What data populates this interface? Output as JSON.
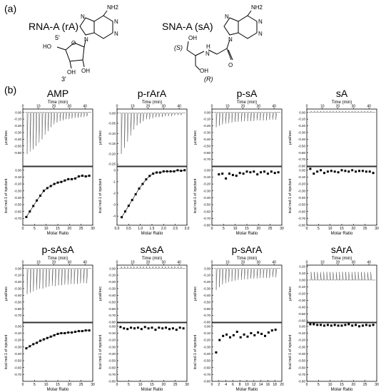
{
  "panel_a_label": "(a)",
  "panel_b_label": "(b)",
  "structures": {
    "rna": {
      "name": "RNA-A (rA)",
      "nh2": "NH2",
      "n": "N",
      "o": "O",
      "ho": "HO",
      "oh": "OH",
      "p5": "5'",
      "p3": "3'"
    },
    "sna": {
      "name": "SNA-A (sA)",
      "nh2": "NH2",
      "n": "N",
      "o": "O",
      "oh": "OH",
      "nh": "H",
      "s": "(S)",
      "r": "(R)"
    }
  },
  "chart_data": [
    {
      "type": "scatter",
      "title": "AMP",
      "top_xlabel": "Time (min)",
      "top_ylabel": "µcal/sec",
      "top_xlim": [
        0,
        45
      ],
      "top_xticks": [
        0,
        10,
        20,
        30,
        40
      ],
      "top_ylim": [
        -0.8,
        0.05
      ],
      "top_yticks": [
        "0.00",
        "-0.10",
        "-0.20",
        "-0.30",
        "-0.40",
        "-0.50",
        "-0.60"
      ],
      "top_yvals": [
        0.0,
        -0.1,
        -0.2,
        -0.3,
        -0.4,
        -0.5,
        -0.6
      ],
      "spikes": [
        -0.62,
        -0.58,
        -0.55,
        -0.5,
        -0.45,
        -0.4,
        -0.33,
        -0.28,
        -0.22,
        -0.18,
        -0.15,
        -0.13,
        -0.12,
        -0.1,
        -0.1,
        -0.09,
        -0.08,
        -0.08,
        -0.07,
        -0.07,
        -0.06
      ],
      "bottom_xlabel": "Molar Ratio",
      "bottom_ylabel": "kcal mol-1 of injectant",
      "bottom_xlim": [
        0,
        30
      ],
      "bottom_xticks": [
        0,
        5,
        10,
        15,
        20,
        25,
        30
      ],
      "bottom_ylim": [
        -0.8,
        0.05
      ],
      "bottom_yticks": [
        "0.00",
        "-0.10",
        "-0.20",
        "-0.30",
        "-0.40",
        "-0.50",
        "-0.60",
        "-0.70"
      ],
      "bottom_yvals": [
        0.0,
        -0.1,
        -0.2,
        -0.3,
        -0.4,
        -0.5,
        -0.6,
        -0.7
      ],
      "points_x": [
        1.5,
        3,
        4.5,
        6,
        7.5,
        9,
        10.5,
        12,
        13.5,
        15,
        16.5,
        18,
        19.5,
        21,
        22.5,
        24,
        25.5,
        27,
        28.5
      ],
      "points_y": [
        -0.68,
        -0.6,
        -0.52,
        -0.44,
        -0.37,
        -0.3,
        -0.26,
        -0.23,
        -0.2,
        -0.18,
        -0.17,
        -0.15,
        -0.13,
        -0.13,
        -0.12,
        -0.09,
        -0.08,
        -0.09,
        -0.08
      ]
    },
    {
      "type": "scatter",
      "title": "p-rArA",
      "top_xlabel": "Time (min)",
      "top_ylabel": "µcal/sec",
      "top_xlim": [
        0,
        45
      ],
      "top_xticks": [
        0,
        10,
        20,
        30,
        40
      ],
      "top_ylim": [
        -0.26,
        0.02
      ],
      "top_yticks": [
        "0.00",
        "-0.05",
        "-0.10",
        "-0.15",
        "-0.20",
        "-0.25"
      ],
      "top_yvals": [
        0.0,
        -0.05,
        -0.1,
        -0.15,
        -0.2,
        -0.25
      ],
      "spikes": [
        -0.2,
        -0.17,
        -0.14,
        -0.11,
        -0.08,
        -0.06,
        -0.05,
        -0.04,
        -0.03,
        -0.03,
        -0.025,
        -0.02,
        -0.02,
        -0.02,
        -0.015,
        -0.015,
        -0.015,
        -0.01,
        -0.01,
        -0.01
      ],
      "bottom_xlabel": "Molar Ratio",
      "bottom_ylabel": "kcal mol-1 of injectant",
      "bottom_xlim": [
        0,
        3
      ],
      "bottom_xticks": [
        0,
        0.5,
        1,
        1.5,
        2,
        2.5,
        3
      ],
      "bottom_xticklabels": [
        "0.0",
        "0.5",
        "1.0",
        "1.5",
        "2.0",
        "2.5",
        "3.0"
      ],
      "bottom_ylim": [
        -4.8,
        0.3
      ],
      "bottom_yticks": [
        "0",
        "-1",
        "-2",
        "-3",
        "-4"
      ],
      "bottom_yvals": [
        0,
        -1,
        -2,
        -3,
        -4
      ],
      "points_x": [
        0.2,
        0.35,
        0.5,
        0.65,
        0.8,
        0.95,
        1.1,
        1.25,
        1.4,
        1.55,
        1.7,
        1.85,
        2.0,
        2.15,
        2.3,
        2.45,
        2.6,
        2.75,
        2.9
      ],
      "points_y": [
        -4.1,
        -3.6,
        -3.1,
        -2.6,
        -2.1,
        -1.6,
        -1.2,
        -0.8,
        -0.5,
        -0.3,
        -0.2,
        -0.2,
        -0.1,
        -0.1,
        -0.1,
        -0.1,
        0.0,
        -0.05,
        0.0
      ]
    },
    {
      "type": "scatter",
      "title": "p-sA",
      "top_xlabel": "Time (min)",
      "top_ylabel": "µcal/sec",
      "top_xlim": [
        0,
        45
      ],
      "top_xticks": [
        0,
        10,
        20,
        30,
        40
      ],
      "top_ylim": [
        -0.8,
        0.05
      ],
      "top_yticks": [
        "0.00",
        "-0.10",
        "-0.20",
        "-0.30",
        "-0.40",
        "-0.50",
        "-0.60",
        "-0.70"
      ],
      "top_yvals": [
        0.0,
        -0.1,
        -0.2,
        -0.3,
        -0.4,
        -0.5,
        -0.6,
        -0.7
      ],
      "spikes": [
        -0.22,
        -0.2,
        -0.18,
        -0.17,
        -0.16,
        -0.15,
        -0.14,
        -0.14,
        -0.14,
        -0.13,
        -0.13,
        -0.13,
        -0.13,
        -0.12,
        -0.12,
        -0.12,
        -0.12,
        -0.11,
        -0.11,
        -0.11
      ],
      "bottom_xlabel": "Molar Ratio",
      "bottom_ylabel": "kcal mol-1 of injectant",
      "bottom_xlim": [
        0,
        30
      ],
      "bottom_xticks": [
        0,
        5,
        10,
        15,
        20,
        25,
        30
      ],
      "bottom_ylim": [
        -0.8,
        0.05
      ],
      "bottom_yticks": [
        "0.00",
        "-0.10",
        "-0.20",
        "-0.30",
        "-0.40",
        "-0.50",
        "-0.60",
        "-0.70",
        "-0.80"
      ],
      "bottom_yvals": [
        0.0,
        -0.1,
        -0.2,
        -0.3,
        -0.4,
        -0.5,
        -0.6,
        -0.7,
        -0.8
      ],
      "points_x": [
        3,
        4.5,
        6,
        7.5,
        9,
        10.5,
        12,
        13.5,
        15,
        16.5,
        18,
        19.5,
        21,
        22.5,
        24,
        25.5,
        27,
        28.5
      ],
      "points_y": [
        -0.06,
        -0.05,
        -0.12,
        -0.05,
        -0.07,
        -0.08,
        -0.04,
        -0.05,
        -0.02,
        -0.03,
        -0.02,
        -0.06,
        -0.03,
        -0.02,
        -0.05,
        -0.02,
        -0.04,
        -0.03
      ]
    },
    {
      "type": "scatter",
      "title": "sA",
      "top_xlabel": "Time (min)",
      "top_ylabel": "µcal/sec",
      "top_xlim": [
        0,
        45
      ],
      "top_xticks": [
        0,
        10,
        20,
        30,
        40
      ],
      "top_ylim": [
        -0.8,
        0.05
      ],
      "top_yticks": [
        "0.00",
        "-0.10",
        "-0.20",
        "-0.30",
        "-0.40",
        "-0.50",
        "-0.60",
        "-0.70",
        "-0.80"
      ],
      "top_yvals": [
        0.0,
        -0.1,
        -0.2,
        -0.3,
        -0.4,
        -0.5,
        -0.6,
        -0.7,
        -0.8
      ],
      "spikes": [
        0.02,
        0.02,
        0.02,
        0.02,
        0.02,
        0.02,
        0.02,
        0.02,
        0.02,
        0.02,
        0.02,
        0.02,
        0.02,
        0.02,
        0.02,
        0.02,
        0.02,
        0.02,
        0.02,
        0.02
      ],
      "bottom_xlabel": "Molar Ratio",
      "bottom_ylabel": "kcal mol-1 of injectant",
      "bottom_xlim": [
        0,
        30
      ],
      "bottom_xticks": [
        0,
        5,
        10,
        15,
        20,
        25,
        30
      ],
      "bottom_ylim": [
        -0.8,
        0.05
      ],
      "bottom_yticks": [
        "0.00",
        "-0.10",
        "-0.20",
        "-0.30",
        "-0.40",
        "-0.50",
        "-0.60",
        "-0.70",
        "-0.80"
      ],
      "bottom_yvals": [
        0.0,
        -0.1,
        -0.2,
        -0.3,
        -0.4,
        -0.5,
        -0.6,
        -0.7,
        -0.8
      ],
      "points_x": [
        1.5,
        3,
        4.5,
        6,
        7.5,
        9,
        10.5,
        12,
        13.5,
        15,
        16.5,
        18,
        19.5,
        21,
        22.5,
        24,
        25.5,
        27,
        28.5
      ],
      "points_y": [
        0.02,
        -0.05,
        -0.02,
        0.0,
        -0.04,
        -0.02,
        -0.01,
        -0.02,
        -0.03,
        0.0,
        -0.01,
        -0.02,
        0.0,
        -0.02,
        -0.01,
        -0.01,
        -0.02,
        -0.02,
        -0.04
      ]
    },
    {
      "type": "scatter",
      "title": "p-sAsA",
      "top_xlabel": "Time (min)",
      "top_ylabel": "µcal/sec",
      "top_xlim": [
        0,
        45
      ],
      "top_xticks": [
        0,
        10,
        20,
        30,
        40
      ],
      "top_ylim": [
        -0.8,
        0.05
      ],
      "top_yticks": [
        "0.00",
        "-0.10",
        "-0.20",
        "-0.30",
        "-0.40",
        "-0.50",
        "-0.60",
        "-0.70"
      ],
      "top_yvals": [
        0.0,
        -0.1,
        -0.2,
        -0.3,
        -0.4,
        -0.5,
        -0.6,
        -0.7
      ],
      "spikes": [
        -0.38,
        -0.36,
        -0.34,
        -0.32,
        -0.3,
        -0.3,
        -0.28,
        -0.27,
        -0.26,
        -0.26,
        -0.25,
        -0.25,
        -0.24,
        -0.24,
        -0.23,
        -0.23,
        -0.23,
        -0.22,
        -0.22,
        -0.22
      ],
      "bottom_xlabel": "Molar Ratio",
      "bottom_ylabel": "kcal mol-1 of injectant",
      "bottom_xlim": [
        0,
        30
      ],
      "bottom_xticks": [
        0,
        5,
        10,
        15,
        20,
        25,
        30
      ],
      "bottom_ylim": [
        -0.8,
        0.05
      ],
      "bottom_yticks": [
        "0.00",
        "-0.10",
        "-0.20",
        "-0.30",
        "-0.40",
        "-0.50",
        "-0.60",
        "-0.70"
      ],
      "bottom_yvals": [
        0.0,
        -0.1,
        -0.2,
        -0.3,
        -0.4,
        -0.5,
        -0.6,
        -0.7
      ],
      "points_x": [
        1.5,
        3,
        4.5,
        6,
        7.5,
        9,
        10.5,
        12,
        13.5,
        15,
        16.5,
        18,
        19.5,
        21,
        22.5,
        24,
        25.5,
        27,
        28.5
      ],
      "points_y": [
        -0.32,
        -0.29,
        -0.26,
        -0.24,
        -0.21,
        -0.19,
        -0.17,
        -0.15,
        -0.13,
        -0.11,
        -0.1,
        -0.1,
        -0.09,
        -0.09,
        -0.08,
        -0.07,
        -0.07,
        -0.06,
        -0.06
      ]
    },
    {
      "type": "scatter",
      "title": "sAsA",
      "top_xlabel": "Time (min)",
      "top_ylabel": "µcal/sec",
      "top_xlim": [
        0,
        45
      ],
      "top_xticks": [
        0,
        10,
        20,
        30,
        40
      ],
      "top_ylim": [
        -0.8,
        0.05
      ],
      "top_yticks": [
        "0.00",
        "-0.10",
        "-0.20",
        "-0.30",
        "-0.40",
        "-0.50",
        "-0.60",
        "-0.70",
        "-0.80"
      ],
      "top_yvals": [
        0.0,
        -0.1,
        -0.2,
        -0.3,
        -0.4,
        -0.5,
        -0.6,
        -0.7,
        -0.8
      ],
      "spikes": [
        0.03,
        0.03,
        0.03,
        0.03,
        0.03,
        0.03,
        0.03,
        0.03,
        0.03,
        0.03,
        0.03,
        0.03,
        0.03,
        0.03,
        0.03,
        0.03,
        0.03,
        0.03,
        0.03,
        0.03
      ],
      "bottom_xlabel": "Molar Ratio",
      "bottom_ylabel": "kcal mol-1 of injectant",
      "bottom_xlim": [
        0,
        30
      ],
      "bottom_xticks": [
        0,
        5,
        10,
        15,
        20,
        25,
        30
      ],
      "bottom_ylim": [
        -0.8,
        0.05
      ],
      "bottom_yticks": [
        "0.00",
        "-0.10",
        "-0.20",
        "-0.30",
        "-0.40",
        "-0.50",
        "-0.60",
        "-0.70",
        "-0.80"
      ],
      "bottom_yvals": [
        0.0,
        -0.1,
        -0.2,
        -0.3,
        -0.4,
        -0.5,
        -0.6,
        -0.7,
        -0.8
      ],
      "points_x": [
        1.5,
        3,
        4.5,
        6,
        7.5,
        9,
        10.5,
        12,
        13.5,
        15,
        16.5,
        18,
        19.5,
        21,
        22.5,
        24,
        25.5,
        27,
        28.5
      ],
      "points_y": [
        -0.01,
        -0.03,
        -0.04,
        -0.02,
        -0.03,
        -0.02,
        -0.04,
        -0.01,
        -0.03,
        -0.02,
        -0.05,
        -0.02,
        -0.03,
        -0.02,
        -0.04,
        -0.03,
        -0.05,
        -0.02,
        -0.03
      ]
    },
    {
      "type": "scatter",
      "title": "p-sArA",
      "top_xlabel": "Time (min)",
      "top_ylabel": "µcal/sec",
      "top_xlim": [
        0,
        45
      ],
      "top_xticks": [
        0,
        10,
        20,
        30,
        40
      ],
      "top_ylim": [
        -0.8,
        0.05
      ],
      "top_yticks": [
        "0.00",
        "-0.10",
        "-0.20",
        "-0.30",
        "-0.40",
        "-0.50",
        "-0.60",
        "-0.70",
        "-0.80"
      ],
      "top_yvals": [
        0.0,
        -0.1,
        -0.2,
        -0.3,
        -0.4,
        -0.5,
        -0.6,
        -0.7,
        -0.8
      ],
      "spikes": [
        -0.32,
        -0.28,
        -0.24,
        -0.22,
        -0.2,
        -0.19,
        -0.18,
        -0.17,
        -0.17,
        -0.16,
        -0.16,
        -0.15,
        -0.15,
        -0.15,
        -0.14,
        -0.14,
        -0.14,
        -0.14,
        -0.13,
        -0.13
      ],
      "bottom_xlabel": "Molar Ratio",
      "bottom_ylabel": "kcal mol-1 of injectant",
      "bottom_xlim": [
        0,
        20
      ],
      "bottom_xticks": [
        0,
        2,
        4,
        6,
        8,
        10,
        12,
        14,
        16,
        18,
        20
      ],
      "bottom_ylim": [
        -0.8,
        0.05
      ],
      "bottom_yticks": [
        "0.00",
        "-0.10",
        "-0.20",
        "-0.30",
        "-0.40",
        "-0.50",
        "-0.60",
        "-0.70",
        "-0.80"
      ],
      "bottom_yvals": [
        0.0,
        -0.1,
        -0.2,
        -0.3,
        -0.4,
        -0.5,
        -0.6,
        -0.7,
        -0.8
      ],
      "points_x": [
        1.2,
        2.2,
        3.2,
        4.2,
        5.2,
        6.2,
        7.2,
        8.2,
        9.2,
        10.2,
        11.2,
        12.2,
        13.2,
        14.2,
        15.2,
        16.2,
        17.2,
        18.2
      ],
      "points_y": [
        -0.38,
        -0.2,
        -0.14,
        -0.12,
        -0.16,
        -0.13,
        -0.08,
        -0.16,
        -0.12,
        -0.15,
        -0.1,
        -0.13,
        -0.09,
        -0.11,
        -0.14,
        -0.09,
        -0.06,
        -0.05
      ]
    },
    {
      "type": "scatter",
      "title": "sArA",
      "top_xlabel": "Time (min)",
      "top_ylabel": "µcal/sec",
      "top_xlim": [
        0,
        45
      ],
      "top_xticks": [
        0,
        10,
        20,
        30,
        40
      ],
      "top_ylim": [
        -0.62,
        0.22
      ],
      "top_yticks": [
        "0.20",
        "0.10",
        "0.00",
        "-0.10",
        "-0.20",
        "-0.30",
        "-0.40",
        "-0.50",
        "-0.60"
      ],
      "top_yvals": [
        0.2,
        0.1,
        0.0,
        -0.1,
        -0.2,
        -0.3,
        -0.4,
        -0.5,
        -0.6
      ],
      "spikes": [
        0.12,
        0.12,
        0.12,
        0.12,
        0.12,
        0.12,
        0.12,
        0.12,
        0.12,
        0.12,
        0.12,
        0.12,
        0.12,
        0.12,
        0.12,
        0.12,
        0.12,
        0.12,
        0.12,
        0.12
      ],
      "bottom_xlabel": "Molar Ratio",
      "bottom_ylabel": "kcal mol-1 of injectant",
      "bottom_xlim": [
        0,
        30
      ],
      "bottom_xticks": [
        0,
        5,
        10,
        15,
        20,
        25,
        30
      ],
      "bottom_ylim": [
        -0.8,
        0.05
      ],
      "bottom_yticks": [
        "0.00",
        "-0.10",
        "-0.20",
        "-0.30",
        "-0.40",
        "-0.50",
        "-0.60",
        "-0.70",
        "-0.80"
      ],
      "bottom_yvals": [
        0.0,
        -0.1,
        -0.2,
        -0.3,
        -0.4,
        -0.5,
        -0.6,
        -0.7,
        -0.8
      ],
      "points_x": [
        1.5,
        3,
        4.5,
        6,
        7.5,
        9,
        10.5,
        12,
        13.5,
        15,
        16.5,
        18,
        19.5,
        21,
        22.5,
        24,
        25.5,
        27,
        28.5
      ],
      "points_y": [
        0.03,
        0.03,
        0.02,
        0.02,
        0.01,
        0.02,
        0.01,
        0.02,
        0.01,
        0.01,
        0.02,
        0.03,
        0.01,
        0.02,
        0.0,
        0.01,
        0.02,
        0.01,
        0.02
      ]
    }
  ]
}
